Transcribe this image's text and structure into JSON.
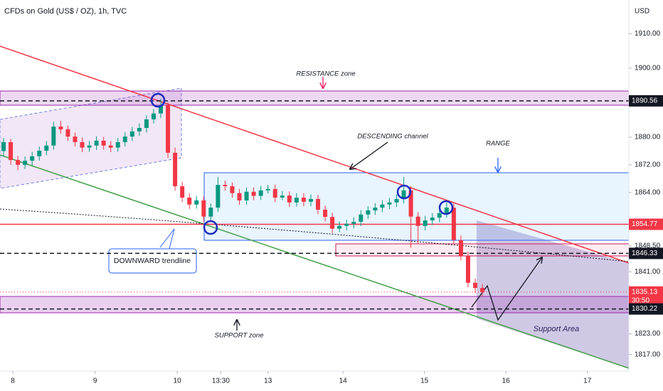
{
  "chart_data": {
    "type": "candlestick",
    "title": "CFDs on Gold (US$ / OZ), 1h, TVC",
    "currency": "USD",
    "up_color": "#089981",
    "down_color": "#f23645",
    "ylim": [
      1812.2,
      1919.8
    ],
    "yticks": [
      {
        "value": 1910,
        "label": "1910.00"
      },
      {
        "value": 1900,
        "label": "1900.00"
      },
      {
        "value": 1880,
        "label": "1880.00"
      },
      {
        "value": 1872,
        "label": "1872.00"
      },
      {
        "value": 1864,
        "label": "1864.00"
      },
      {
        "value": 1848.5,
        "label": "1848.50"
      },
      {
        "value": 1841,
        "label": "1841.00"
      },
      {
        "value": 1823,
        "label": "1823.00"
      },
      {
        "value": 1817,
        "label": "1817.00"
      }
    ],
    "xlim": [
      0,
      88
    ],
    "xticks": [
      {
        "value": 1.8,
        "label": "8"
      },
      {
        "value": 13.3,
        "label": "9"
      },
      {
        "value": 24.8,
        "label": "10"
      },
      {
        "value": 30.9,
        "label": "13:30"
      },
      {
        "value": 37.5,
        "label": "13"
      },
      {
        "value": 48,
        "label": "14"
      },
      {
        "value": 59.4,
        "label": "15"
      },
      {
        "value": 70.8,
        "label": "16"
      },
      {
        "value": 82.2,
        "label": "17"
      }
    ],
    "open": [
      1876.0,
      1878.6,
      1873.4,
      1872.0,
      1873.2,
      1874.5,
      1876.1,
      1877.6,
      1883.1,
      1882.3,
      1880.2,
      1878.6,
      1877.0,
      1877.6,
      1879.0,
      1877.6,
      1877.0,
      1878.6,
      1880.2,
      1881.7,
      1882.7,
      1885.2,
      1886.9,
      1889.3,
      1875.5,
      1865.8,
      1862.5,
      1860.5,
      1861.7,
      1857.0,
      1859.6,
      1866.2,
      1865.8,
      1863.8,
      1861.7,
      1864.2,
      1863.0,
      1864.6,
      1865.0,
      1862.5,
      1863.1,
      1861.1,
      1862.5,
      1861.3,
      1862.1,
      1859.0,
      1856.9,
      1853.5,
      1854.3,
      1854.9,
      1855.5,
      1857.6,
      1858.8,
      1859.6,
      1860.5,
      1861.1,
      1862.1,
      1864.6,
      1857.0,
      1854.3,
      1855.9,
      1856.7,
      1858.0,
      1859.6,
      1850.2,
      1845.6,
      1837.8,
      1836.3
    ],
    "high": [
      1879.8,
      1879.5,
      1874.6,
      1874.4,
      1875.8,
      1877.3,
      1878.9,
      1884.5,
      1884.8,
      1883.4,
      1881.4,
      1879.9,
      1878.9,
      1880.3,
      1880.1,
      1878.9,
      1879.8,
      1881.5,
      1883.0,
      1884.0,
      1886.4,
      1888.2,
      1891.2,
      1890.0,
      1877.0,
      1867.0,
      1863.8,
      1863.0,
      1862.9,
      1860.8,
      1868.5,
      1867.4,
      1866.9,
      1865.0,
      1865.4,
      1865.5,
      1865.9,
      1866.2,
      1866.3,
      1864.4,
      1864.3,
      1863.8,
      1863.8,
      1863.4,
      1863.3,
      1860.2,
      1858.1,
      1855.6,
      1856.1,
      1856.8,
      1858.9,
      1860.0,
      1860.9,
      1861.8,
      1862.4,
      1863.4,
      1868.5,
      1865.8,
      1858.3,
      1857.2,
      1858.0,
      1859.3,
      1861.0,
      1860.8,
      1851.5,
      1846.8,
      1839.0,
      1837.5
    ],
    "low": [
      1874.5,
      1872.0,
      1870.5,
      1870.8,
      1871.8,
      1873.2,
      1874.8,
      1876.4,
      1881.0,
      1878.9,
      1877.3,
      1875.7,
      1875.8,
      1876.3,
      1876.4,
      1875.7,
      1875.8,
      1877.3,
      1878.9,
      1880.4,
      1881.4,
      1884.0,
      1885.6,
      1874.0,
      1864.5,
      1861.2,
      1859.2,
      1859.3,
      1855.6,
      1855.8,
      1858.4,
      1864.5,
      1862.5,
      1860.4,
      1860.5,
      1861.7,
      1861.8,
      1863.7,
      1861.2,
      1861.8,
      1859.8,
      1859.9,
      1860.0,
      1860.0,
      1857.7,
      1855.6,
      1852.2,
      1852.5,
      1853.0,
      1853.6,
      1854.3,
      1856.3,
      1857.5,
      1858.3,
      1859.2,
      1859.8,
      1860.8,
      1848.0,
      1849.0,
      1853.0,
      1854.6,
      1855.4,
      1856.7,
      1849.0,
      1844.3,
      1836.5,
      1834.8,
      1833.8
    ],
    "close": [
      1878.6,
      1873.4,
      1872.0,
      1873.2,
      1874.5,
      1876.1,
      1877.6,
      1883.1,
      1882.3,
      1880.2,
      1878.6,
      1877.0,
      1877.6,
      1879.0,
      1877.6,
      1877.0,
      1878.6,
      1880.2,
      1881.7,
      1882.7,
      1885.2,
      1886.9,
      1889.3,
      1875.5,
      1865.8,
      1862.5,
      1860.5,
      1861.7,
      1857.0,
      1859.6,
      1866.2,
      1865.8,
      1863.8,
      1861.7,
      1864.2,
      1863.0,
      1864.6,
      1865.0,
      1862.5,
      1863.1,
      1861.1,
      1862.5,
      1861.3,
      1862.1,
      1859.0,
      1856.9,
      1853.5,
      1854.3,
      1854.9,
      1855.5,
      1857.6,
      1858.8,
      1859.6,
      1860.5,
      1861.1,
      1862.1,
      1864.6,
      1857.0,
      1854.3,
      1855.9,
      1856.7,
      1858.0,
      1859.6,
      1850.2,
      1845.6,
      1837.8,
      1836.3,
      1835.13
    ],
    "levels": [
      {
        "value": 1890.56,
        "color": "#131722",
        "line": "dashed"
      },
      {
        "value": 1854.77,
        "color": "#f23645",
        "line": "solid"
      },
      {
        "value": 1846.33,
        "color": "#131722",
        "line": "dashed"
      },
      {
        "value": 1835.13,
        "color": "#f23645",
        "line": "dotted",
        "countdown": "30:50"
      },
      {
        "value": 1830.22,
        "color": "#131722",
        "line": "dashed"
      }
    ],
    "annotations": {
      "resistance": "RESISTANCE zone",
      "channel": "DESCENDING channel",
      "range": "RANGE",
      "trendline": "DOWNWARD trendline",
      "support": "SUPPORT zone",
      "support_area": "Support Area"
    }
  }
}
